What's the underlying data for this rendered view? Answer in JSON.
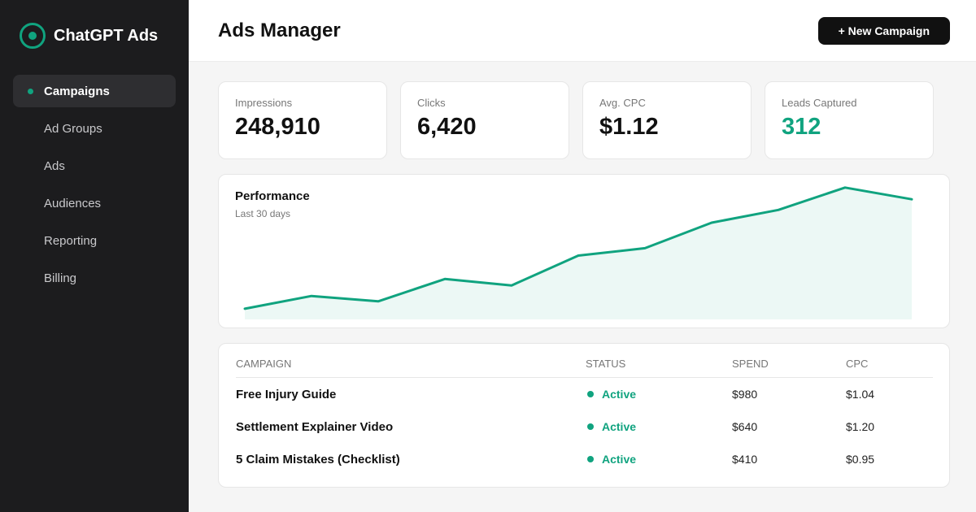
{
  "brand": {
    "name": "ChatGPT Ads"
  },
  "sidebar": {
    "items": [
      {
        "label": "Campaigns",
        "active": true
      },
      {
        "label": "Ad Groups",
        "active": false
      },
      {
        "label": "Ads",
        "active": false
      },
      {
        "label": "Audiences",
        "active": false
      },
      {
        "label": "Reporting",
        "active": false
      },
      {
        "label": "Billing",
        "active": false
      }
    ]
  },
  "header": {
    "title": "Ads Manager",
    "new_campaign_label": "+ New Campaign"
  },
  "stats": [
    {
      "label": "Impressions",
      "value": "248,910"
    },
    {
      "label": "Clicks",
      "value": "6,420"
    },
    {
      "label": "Avg. CPC",
      "value": "$1.12"
    },
    {
      "label": "Leads Captured",
      "value": "312"
    }
  ],
  "performance": {
    "title": "Performance",
    "subtitle": "Last 30 days",
    "series": [
      10,
      22,
      17,
      38,
      32,
      60,
      67,
      91,
      103,
      124,
      113
    ]
  },
  "table": {
    "headers": {
      "campaign": "CAMPAIGN",
      "status": "STATUS",
      "spend": "SPEND",
      "cpc": "CPC"
    },
    "rows": [
      {
        "campaign": "Free Injury Guide",
        "status": "Active",
        "spend": "$980",
        "cpc": "$1.04"
      },
      {
        "campaign": "Settlement Explainer Video",
        "status": "Active",
        "spend": "$640",
        "cpc": "$1.20"
      },
      {
        "campaign": "5 Claim Mistakes (Checklist)",
        "status": "Active",
        "spend": "$410",
        "cpc": "$0.95"
      }
    ]
  },
  "colors": {
    "accent": "#10a37f",
    "sidebar_bg": "#1c1c1e",
    "button_bg": "#111111"
  }
}
